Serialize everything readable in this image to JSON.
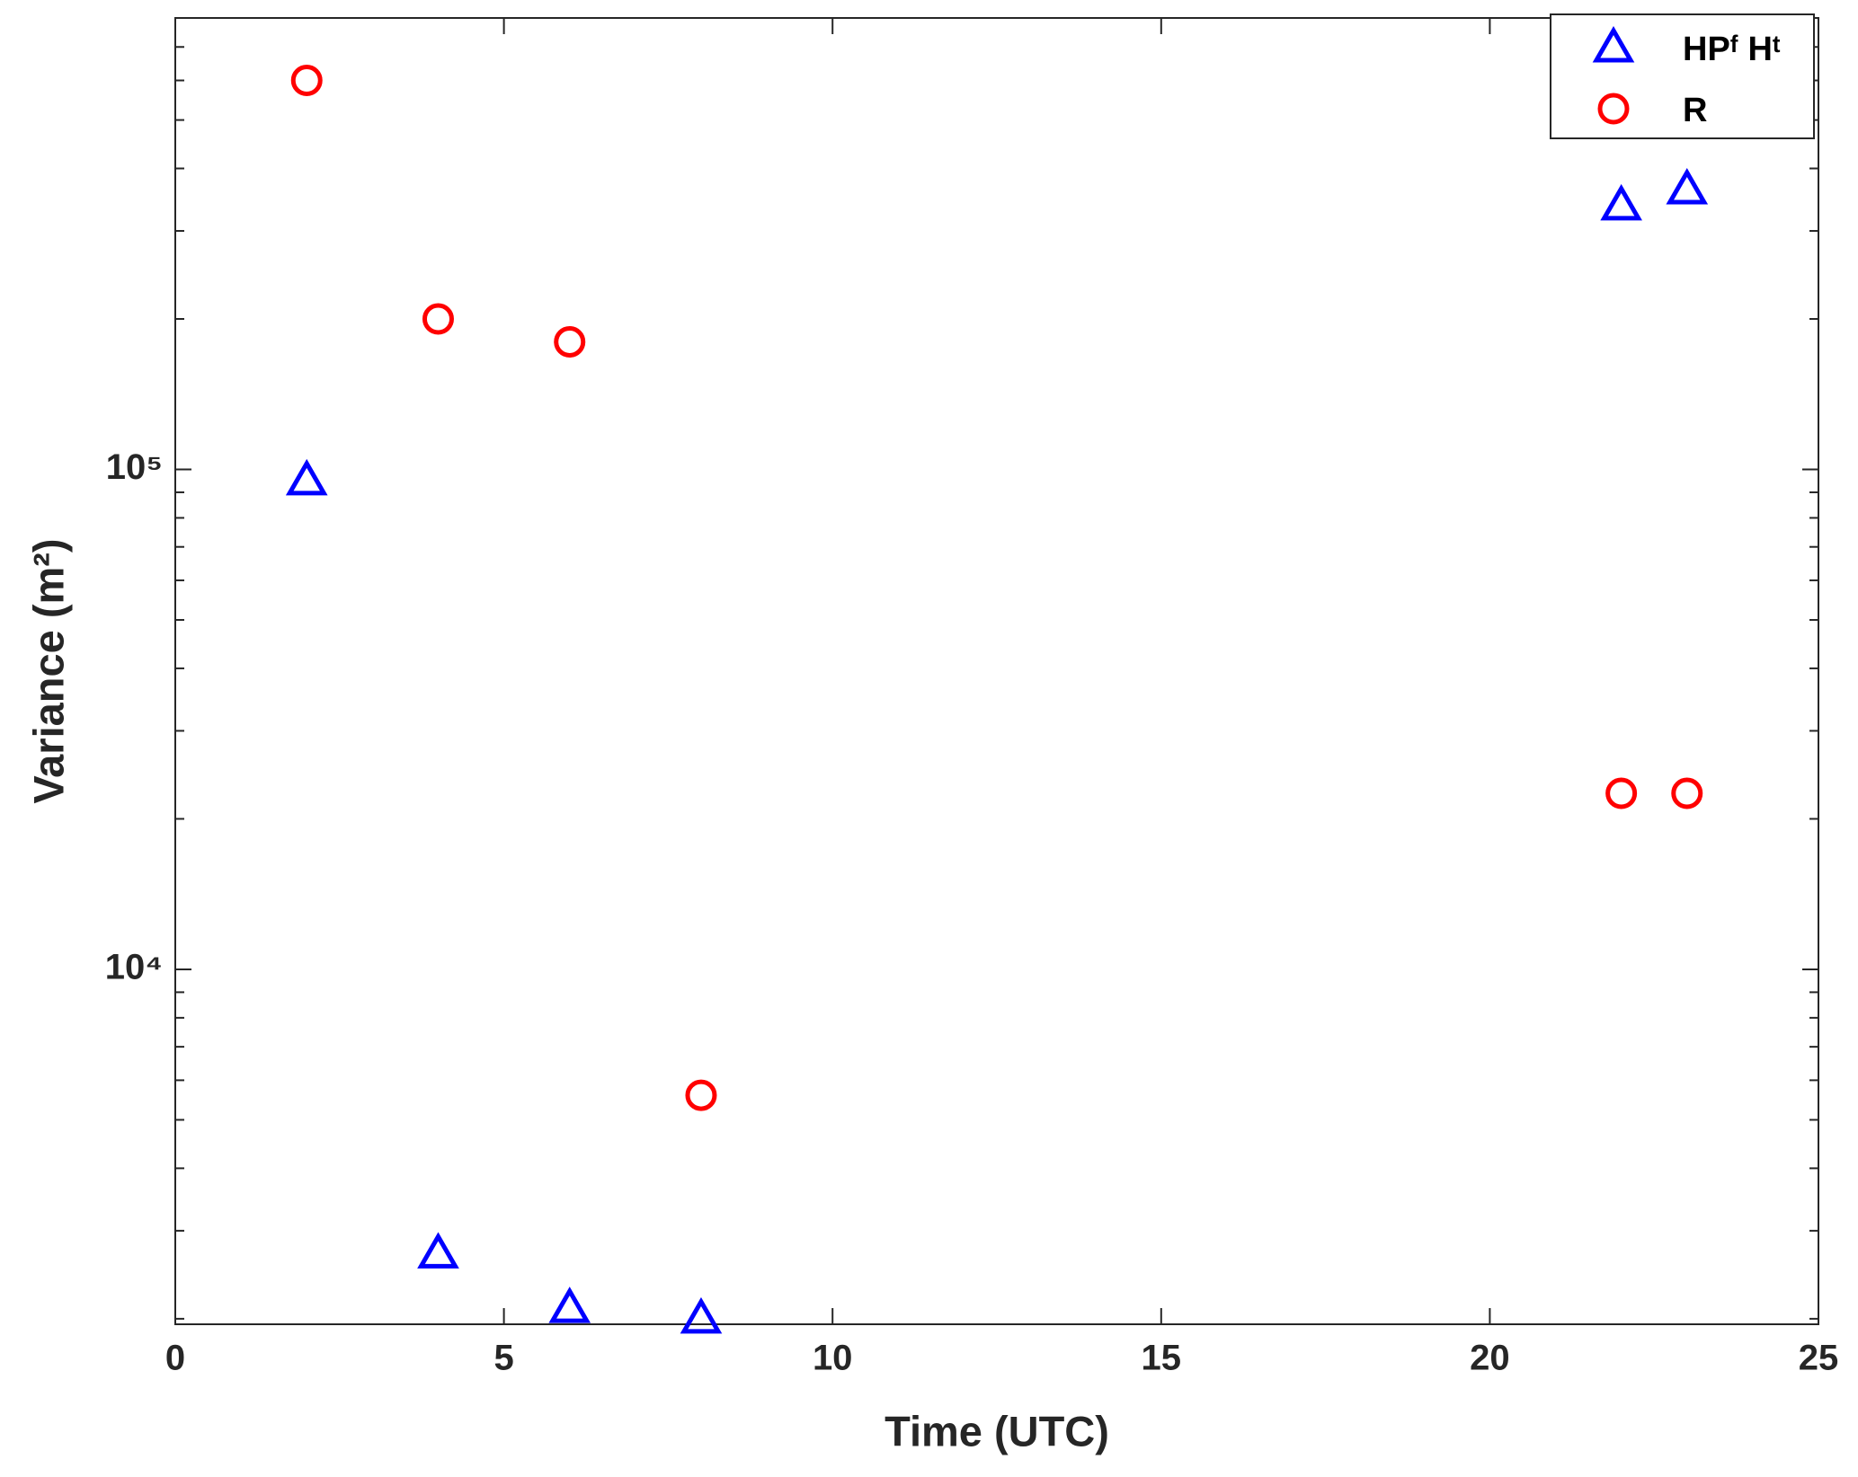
{
  "chart_data": {
    "type": "scatter",
    "xlabel": "Time (UTC)",
    "ylabel": "Variance (m²)",
    "x": [
      2,
      4,
      6,
      8,
      22,
      23
    ],
    "series": [
      {
        "name": "HPᶠ Hᵗ",
        "color": "#0000ff",
        "marker": "triangle",
        "values": [
          95000,
          2700,
          2100,
          2000,
          337000,
          363000
        ]
      },
      {
        "name": "R",
        "color": "#ff0000",
        "marker": "circle",
        "values": [
          600000,
          200000,
          180000,
          5600,
          22500,
          22500
        ]
      }
    ],
    "xlim": [
      0,
      25
    ],
    "xticks": [
      0,
      5,
      10,
      15,
      20,
      25
    ],
    "ylim": [
      1950,
      800000
    ],
    "ylog": true,
    "yticks": [
      {
        "value": 10000,
        "label": "10⁴"
      },
      {
        "value": 100000,
        "label": "10⁵"
      }
    ],
    "yminorticks": [
      2000,
      3000,
      4000,
      5000,
      6000,
      7000,
      8000,
      9000,
      20000,
      30000,
      40000,
      50000,
      60000,
      70000,
      80000,
      90000,
      200000,
      300000,
      400000,
      500000,
      600000,
      700000,
      800000
    ],
    "legend": "top-right"
  }
}
